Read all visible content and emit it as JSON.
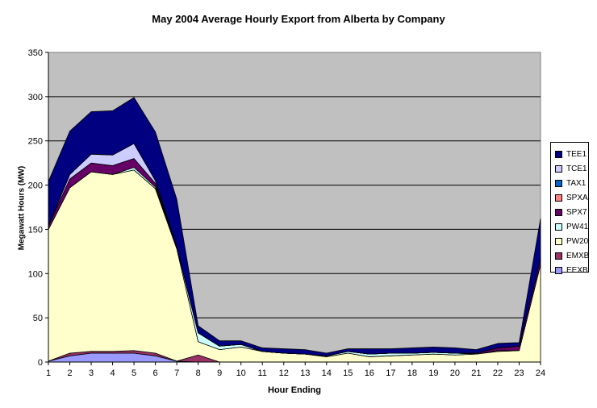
{
  "chart_data": {
    "type": "area",
    "stacked": true,
    "title": "May 2004 Average Hourly Export from Alberta by Company",
    "xlabel": "Hour Ending",
    "ylabel": "Megawatt Hours (MW)",
    "ylim": [
      0,
      350
    ],
    "yticks": [
      "0",
      "50",
      "100",
      "150",
      "200",
      "250",
      "300",
      "350"
    ],
    "categories": [
      "1",
      "2",
      "3",
      "4",
      "5",
      "6",
      "7",
      "8",
      "9",
      "10",
      "11",
      "12",
      "13",
      "14",
      "15",
      "16",
      "17",
      "18",
      "19",
      "20",
      "21",
      "22",
      "23",
      "24"
    ],
    "grid": true,
    "legend_position": "right",
    "series": [
      {
        "name": "EEXB",
        "color": "#9999ff",
        "values": [
          1,
          7,
          10,
          10,
          10,
          7,
          1,
          0,
          0,
          0,
          0,
          0,
          0,
          0,
          0,
          0,
          0,
          0,
          0,
          0,
          0,
          0,
          0,
          0
        ]
      },
      {
        "name": "EMXB",
        "color": "#993366",
        "values": [
          0,
          3,
          2,
          2,
          3,
          3,
          0,
          8,
          0,
          0,
          0,
          0,
          0,
          0,
          0,
          0,
          0,
          0,
          0,
          0,
          0,
          0,
          0,
          0
        ]
      },
      {
        "name": "PW20",
        "color": "#ffffcc",
        "values": [
          149,
          187,
          203,
          200,
          204,
          186,
          127,
          15,
          14,
          17,
          12,
          10,
          9,
          6,
          10,
          6,
          7,
          8,
          9,
          8,
          9,
          12,
          13,
          110
        ]
      },
      {
        "name": "PW41",
        "color": "#ccffff",
        "values": [
          0,
          0,
          0,
          0,
          3,
          2,
          2,
          10,
          4,
          3,
          0,
          0,
          0,
          1,
          2,
          3,
          3,
          2,
          2,
          2,
          0,
          1,
          0,
          0
        ]
      },
      {
        "name": "SPX7",
        "color": "#660066",
        "values": [
          4,
          10,
          10,
          10,
          10,
          4,
          0,
          0,
          0,
          0,
          0,
          0,
          0,
          0,
          0,
          0,
          0,
          0,
          0,
          0,
          1,
          3,
          5,
          7
        ]
      },
      {
        "name": "SPXA",
        "color": "#ff8080",
        "values": [
          0,
          0,
          0,
          0,
          0,
          0,
          0,
          0,
          0,
          0,
          0,
          0,
          0,
          0,
          0,
          0,
          0,
          0,
          0,
          0,
          0,
          0,
          0,
          0
        ]
      },
      {
        "name": "TAX1",
        "color": "#0066cc",
        "values": [
          0,
          0,
          0,
          0,
          0,
          0,
          0,
          0,
          0,
          0,
          0,
          0,
          0,
          0,
          0,
          0,
          0,
          0,
          0,
          0,
          0,
          0,
          0,
          0
        ]
      },
      {
        "name": "TCE1",
        "color": "#ccccff",
        "values": [
          0,
          5,
          10,
          12,
          17,
          3,
          0,
          0,
          0,
          0,
          0,
          0,
          0,
          0,
          0,
          0,
          0,
          0,
          0,
          0,
          0,
          0,
          0,
          0
        ]
      },
      {
        "name": "TEE1",
        "color": "#000080",
        "values": [
          50,
          49,
          48,
          50,
          52,
          55,
          54,
          8,
          6,
          4,
          4,
          5,
          5,
          3,
          3,
          6,
          5,
          6,
          6,
          6,
          4,
          5,
          4,
          45
        ]
      }
    ]
  }
}
